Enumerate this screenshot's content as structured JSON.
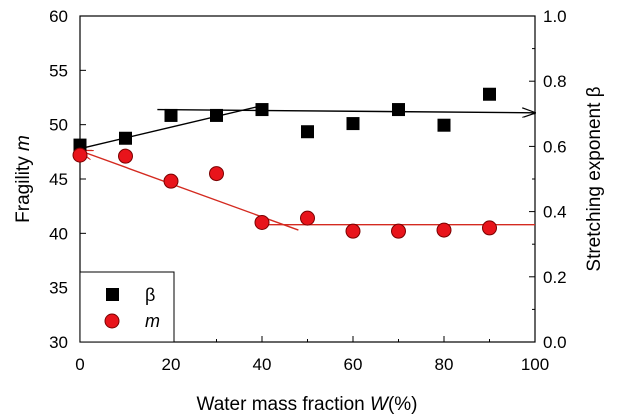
{
  "chart_data": {
    "type": "scatter",
    "xlabel": "Water mass fraction ",
    "xlabel_var": "W",
    "xlabel_unit": "(%)",
    "ylabel_left": "Fragility ",
    "ylabel_left_var": "m",
    "ylabel_right": "Stretching exponent β",
    "xlim": [
      0,
      100
    ],
    "ylim_left": [
      30,
      60
    ],
    "ylim_right": [
      0.0,
      1.0
    ],
    "x_ticks": [
      0,
      20,
      40,
      60,
      80,
      100
    ],
    "y_left_ticks": [
      30,
      35,
      40,
      45,
      50,
      55,
      60
    ],
    "y_right_ticks": [
      "0.0",
      "0.2",
      "0.4",
      "0.6",
      "0.8",
      "1.0"
    ],
    "grid": false,
    "legend_position": "bottom-left",
    "series": [
      {
        "name": "β",
        "marker": "square",
        "color": "#000000",
        "axis": "right",
        "x": [
          0,
          10,
          20,
          30,
          40,
          50,
          60,
          70,
          80,
          90
        ],
        "y": [
          0.604,
          0.625,
          0.695,
          0.695,
          0.713,
          0.645,
          0.67,
          0.713,
          0.665,
          0.76
        ]
      },
      {
        "name": "m",
        "marker": "circle",
        "color": "#e8141b",
        "axis": "left",
        "x": [
          0,
          10,
          20,
          30,
          40,
          50,
          60,
          70,
          80,
          90
        ],
        "y": [
          47.2,
          47.1,
          44.8,
          45.5,
          41.0,
          41.4,
          40.2,
          40.2,
          40.3,
          40.5
        ]
      }
    ],
    "trend_lines": [
      {
        "series": "β",
        "axis": "right",
        "color": "#000000",
        "from": [
          0,
          0.593
        ],
        "to": [
          40,
          0.725
        ],
        "arrow": "none"
      },
      {
        "series": "β",
        "axis": "right",
        "color": "#000000",
        "from": [
          17,
          0.713
        ],
        "to": [
          100,
          0.703
        ],
        "arrow": "end"
      },
      {
        "series": "m",
        "axis": "left",
        "color": "#d42a20",
        "from": [
          100,
          40.8
        ],
        "to": [
          40,
          40.8
        ],
        "arrow": "none"
      },
      {
        "series": "m",
        "axis": "left",
        "color": "#d42a20",
        "from": [
          48,
          40.3
        ],
        "to": [
          0,
          47.6
        ],
        "arrow": "end"
      }
    ]
  }
}
